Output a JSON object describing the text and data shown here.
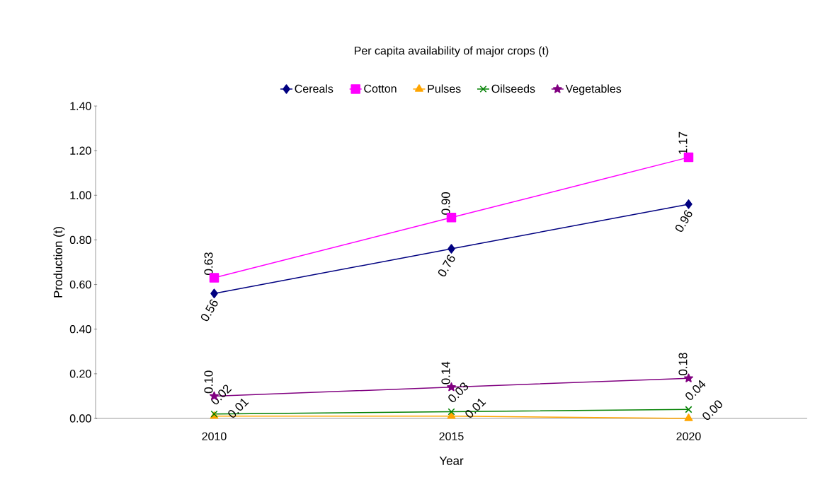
{
  "chart_data": {
    "type": "line",
    "title": "Per capita availability of major crops (t)",
    "xlabel": "Year",
    "ylabel": "Production (t)",
    "categories": [
      "2010",
      "2015",
      "2020"
    ],
    "series": [
      {
        "name": "Cereals",
        "color": "#000080",
        "marker": "diamond",
        "values": [
          0.56,
          0.76,
          0.96
        ],
        "value_labels": [
          "0.56",
          "0.76",
          "0.96"
        ]
      },
      {
        "name": "Cotton",
        "color": "#ff00ff",
        "marker": "square",
        "values": [
          0.63,
          0.9,
          1.17
        ],
        "value_labels": [
          "0.63",
          "0.90",
          "1.17"
        ]
      },
      {
        "name": "Pulses",
        "color": "#ffa500",
        "marker": "triangle",
        "values": [
          0.01,
          0.01,
          0.0
        ],
        "value_labels": [
          "0.01",
          "0.01",
          "0.00"
        ]
      },
      {
        "name": "Oilseeds",
        "color": "#008000",
        "marker": "cross",
        "values": [
          0.02,
          0.03,
          0.04
        ],
        "value_labels": [
          "0.02",
          "0.03",
          "0.04"
        ]
      },
      {
        "name": "Vegetables",
        "color": "#800080",
        "marker": "star",
        "values": [
          0.1,
          0.14,
          0.18
        ],
        "value_labels": [
          "0.10",
          "0.14",
          "0.18"
        ]
      }
    ],
    "ylim": [
      0,
      1.4
    ],
    "yticks": [
      {
        "value": 0,
        "label": "0.00"
      },
      {
        "value": 0.2,
        "label": "0.20"
      },
      {
        "value": 0.4,
        "label": "0.40"
      },
      {
        "value": 0.6,
        "label": "0.60"
      },
      {
        "value": 0.8,
        "label": "0.80"
      },
      {
        "value": 1.0,
        "label": "1.00"
      },
      {
        "value": 1.2,
        "label": "1.20"
      },
      {
        "value": 1.4,
        "label": "1.40"
      }
    ],
    "legend": "top",
    "grid": false
  }
}
